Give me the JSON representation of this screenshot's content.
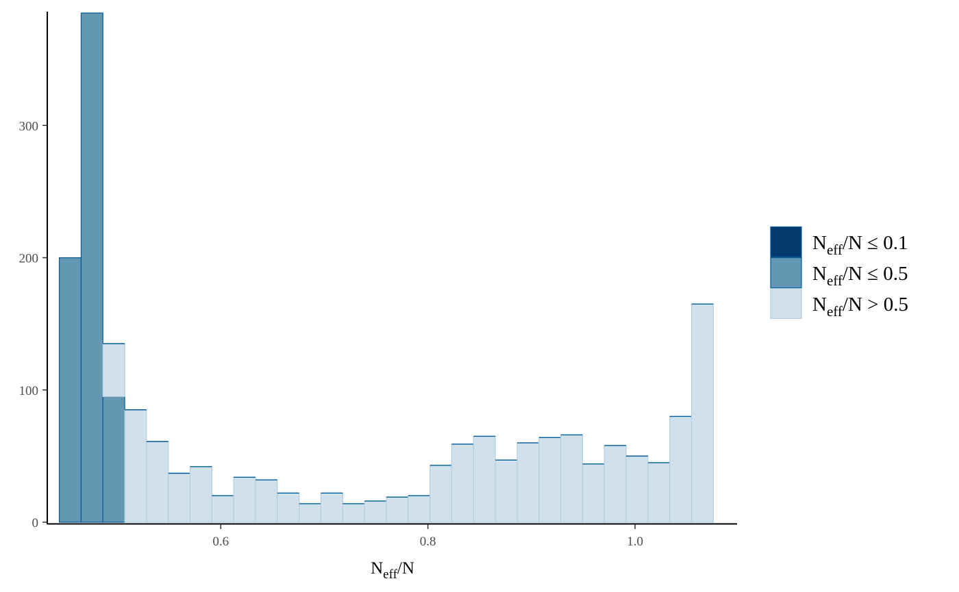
{
  "chart_data": {
    "type": "bar",
    "title": "",
    "xlabel": {
      "main": "N",
      "sub": "eff",
      "tail": "/N"
    },
    "ylabel": "",
    "xlim": [
      0.4325,
      1.0985
    ],
    "ylim": [
      0,
      385
    ],
    "xticks": [
      0.6,
      0.8,
      1.0
    ],
    "xtick_labels": [
      "0.6",
      "0.8",
      "1.0"
    ],
    "yticks": [
      0,
      100,
      200,
      300
    ],
    "ytick_labels": [
      "0",
      "100",
      "200",
      "300"
    ],
    "grid": false,
    "legend_position": "right",
    "bin_edges": [
      0.4441,
      0.4652,
      0.4862,
      0.5073,
      0.5283,
      0.5494,
      0.5704,
      0.5915,
      0.6125,
      0.6336,
      0.6546,
      0.6757,
      0.6967,
      0.7178,
      0.7388,
      0.7599,
      0.7809,
      0.802,
      0.823,
      0.8441,
      0.8651,
      0.8862,
      0.9072,
      0.9283,
      0.9493,
      0.9704,
      0.9914,
      1.0125,
      1.0335,
      1.0546,
      1.0756
    ],
    "series": [
      {
        "name": {
          "main": "N",
          "sub": "eff",
          "tail": "/N ≤ 0.1"
        },
        "fill": "#03396c",
        "values": [
          0,
          0,
          0,
          0,
          0,
          0,
          0,
          0,
          0,
          0,
          0,
          0,
          0,
          0,
          0,
          0,
          0,
          0,
          0,
          0,
          0,
          0,
          0,
          0,
          0,
          0,
          0,
          0,
          0,
          0
        ]
      },
      {
        "name": {
          "main": "N",
          "sub": "eff",
          "tail": "/N ≤ 0.5"
        },
        "fill": "#6497b1",
        "values": [
          200,
          385,
          95,
          0,
          0,
          0,
          0,
          0,
          0,
          0,
          0,
          0,
          0,
          0,
          0,
          0,
          0,
          0,
          0,
          0,
          0,
          0,
          0,
          0,
          0,
          0,
          0,
          0,
          0,
          0
        ]
      },
      {
        "name": {
          "main": "N",
          "sub": "eff",
          "tail": "/N > 0.5"
        },
        "fill": "#d1e1ec",
        "values": [
          0,
          0,
          40,
          85,
          61,
          37,
          42,
          20,
          34,
          32,
          22,
          14,
          22,
          14,
          16,
          19,
          20,
          43,
          59,
          65,
          47,
          60,
          64,
          66,
          44,
          58,
          50,
          45,
          80,
          165
        ]
      }
    ],
    "colors": {
      "bar_outline_dark": "#005b96",
      "bar_outline_light": "#b3cde0",
      "axis": "#000000"
    }
  }
}
